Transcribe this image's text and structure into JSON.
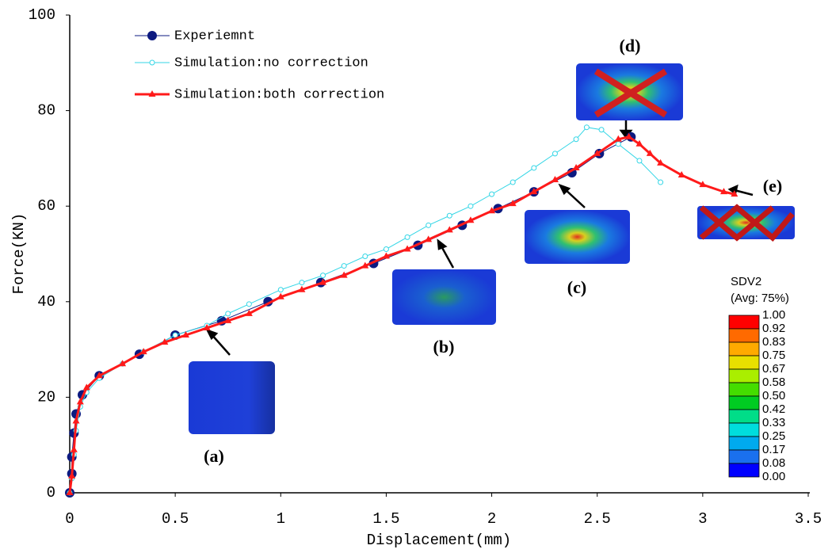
{
  "chart_data": {
    "type": "line",
    "x_label": "Displacement(mm)",
    "y_label": "Force(KN)",
    "xlim": [
      0,
      3.5
    ],
    "xticks": [
      0,
      0.5,
      1,
      1.5,
      2,
      2.5,
      3,
      3.5
    ],
    "ylim": [
      0,
      100
    ],
    "yticks": [
      0,
      20,
      40,
      60,
      80,
      100
    ],
    "grid": false,
    "legend": "upper left",
    "series": [
      {
        "name": "Experiemnt",
        "color": "#0d1a80",
        "marker": "circle",
        "x": [
          0,
          0.01,
          0.01,
          0.02,
          0.03,
          0.06,
          0.14,
          0.33,
          0.5,
          0.72,
          0.94,
          1.19,
          1.44,
          1.65,
          1.86,
          2.03,
          2.2,
          2.38,
          2.51,
          2.66
        ],
        "values": [
          0,
          4,
          7.5,
          12.5,
          16.5,
          20.5,
          24.5,
          29,
          33,
          36,
          40,
          44,
          48,
          51.8,
          56,
          59.5,
          63,
          67,
          71,
          74.5
        ]
      },
      {
        "name": "Simulation:no correction",
        "color": "#33d6e6",
        "marker": "open-circle",
        "x": [
          0,
          0.01,
          0.02,
          0.03,
          0.05,
          0.08,
          0.14,
          0.25,
          0.35,
          0.5,
          0.65,
          0.75,
          0.85,
          1.0,
          1.1,
          1.2,
          1.3,
          1.4,
          1.5,
          1.6,
          1.7,
          1.8,
          1.9,
          2.0,
          2.1,
          2.2,
          2.3,
          2.4,
          2.45,
          2.52,
          2.6,
          2.7,
          2.8
        ],
        "values": [
          0,
          3,
          8,
          13,
          18,
          21,
          24,
          27,
          29.5,
          33,
          35,
          37.5,
          39.5,
          42.5,
          44,
          45.5,
          47.5,
          49.5,
          51,
          53.5,
          56,
          58,
          60,
          62.5,
          65,
          68,
          71,
          74,
          76.5,
          76,
          73,
          69.5,
          65
        ]
      },
      {
        "name": "Simulation:both correction",
        "color": "#ff1a1a",
        "marker": "triangle",
        "x": [
          0,
          0.01,
          0.02,
          0.03,
          0.05,
          0.08,
          0.14,
          0.25,
          0.35,
          0.45,
          0.55,
          0.65,
          0.75,
          0.85,
          1.0,
          1.1,
          1.2,
          1.3,
          1.4,
          1.5,
          1.6,
          1.7,
          1.8,
          1.9,
          2.0,
          2.1,
          2.2,
          2.3,
          2.4,
          2.5,
          2.6,
          2.65,
          2.7,
          2.75,
          2.8,
          2.9,
          3.0,
          3.1,
          3.15
        ],
        "values": [
          0,
          3.5,
          9,
          15,
          19,
          22,
          24.5,
          27,
          29.5,
          31.5,
          33,
          34.5,
          36,
          37.5,
          41,
          42.5,
          44,
          45.5,
          47.5,
          49.5,
          51,
          53,
          55,
          57,
          59,
          60.5,
          63,
          65.5,
          68,
          71,
          74,
          74.5,
          73,
          71,
          69,
          66.5,
          64.5,
          63,
          62.5
        ]
      }
    ],
    "annotations": [
      "(a)",
      "(b)",
      "(c)",
      "(d)",
      "(e)"
    ],
    "colorbar": {
      "title": "SDV2",
      "subtitle": "(Avg: 75%)",
      "labels": [
        "1.00",
        "0.92",
        "0.83",
        "0.75",
        "0.67",
        "0.58",
        "0.50",
        "0.42",
        "0.33",
        "0.25",
        "0.17",
        "0.08",
        "0.00"
      ]
    }
  }
}
